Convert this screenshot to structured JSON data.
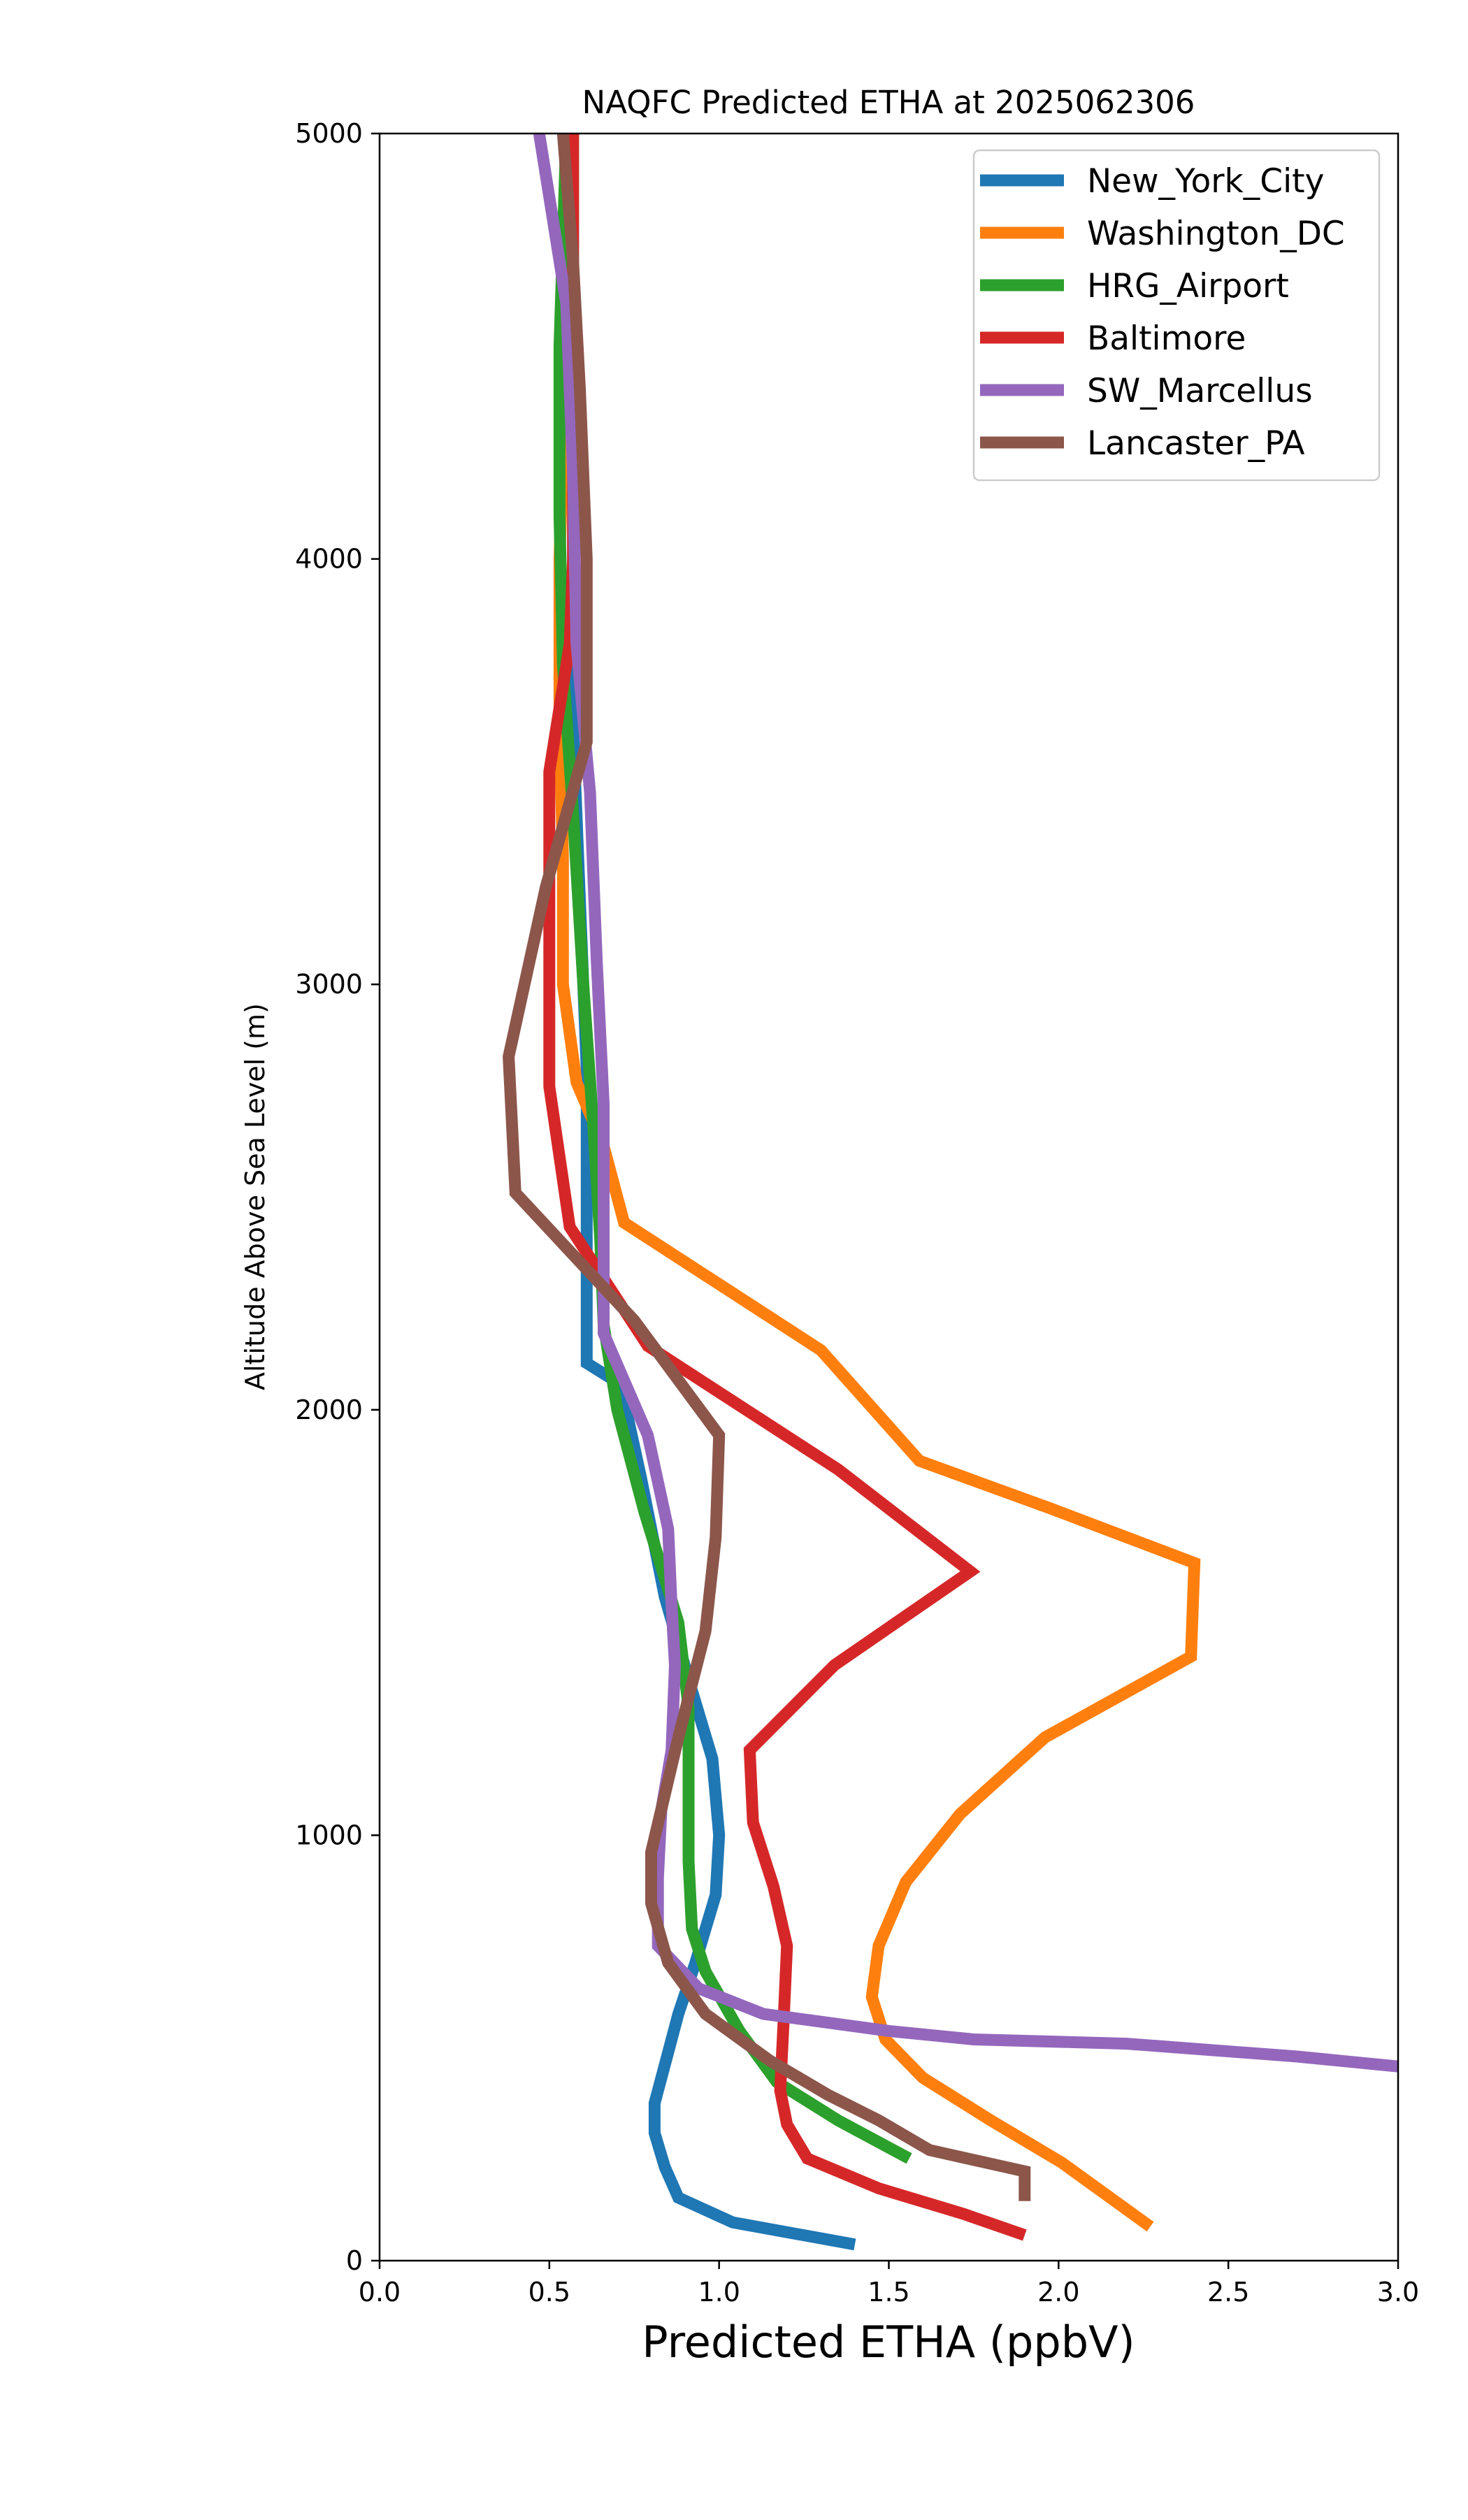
{
  "chart_data": {
    "type": "line",
    "title": "NAQFC Predicted ETHA at 2025062306",
    "xlabel": "Predicted ETHA (ppbV)",
    "ylabel": "Altitude Above Sea Level (m)",
    "xlim": [
      0.0,
      3.0
    ],
    "ylim": [
      0,
      5000
    ],
    "xticks": [
      0.0,
      0.5,
      1.0,
      1.5,
      2.0,
      2.5,
      3.0
    ],
    "xtick_labels": [
      "0.0",
      "0.5",
      "1.0",
      "1.5",
      "2.0",
      "2.5",
      "3.0"
    ],
    "yticks": [
      0,
      1000,
      2000,
      3000,
      4000,
      5000
    ],
    "ytick_labels": [
      "0",
      "1000",
      "2000",
      "3000",
      "4000",
      "5000"
    ],
    "grid": false,
    "legend_position": "top-right",
    "series": [
      {
        "name": "New_York_City",
        "color": "#1f77b4",
        "points": [
          [
            1.4,
            38
          ],
          [
            1.04,
            90
          ],
          [
            0.88,
            148
          ],
          [
            0.84,
            220
          ],
          [
            0.81,
            300
          ],
          [
            0.81,
            370
          ],
          [
            0.84,
            460
          ],
          [
            0.88,
            580
          ],
          [
            0.93,
            700
          ],
          [
            0.99,
            860
          ],
          [
            1.0,
            1000
          ],
          [
            0.98,
            1180
          ],
          [
            0.92,
            1340
          ],
          [
            0.84,
            1560
          ],
          [
            0.77,
            1840
          ],
          [
            0.71,
            2060
          ],
          [
            0.61,
            2110
          ],
          [
            0.61,
            2440
          ],
          [
            0.61,
            2800
          ],
          [
            0.59,
            3200
          ],
          [
            0.57,
            3600
          ],
          [
            0.57,
            4000
          ],
          [
            0.57,
            4500
          ],
          [
            0.57,
            5000
          ]
        ]
      },
      {
        "name": "Washington_DC",
        "color": "#ff7f0e",
        "points": [
          [
            2.27,
            80
          ],
          [
            2.01,
            230
          ],
          [
            1.8,
            330
          ],
          [
            1.6,
            430
          ],
          [
            1.49,
            520
          ],
          [
            1.45,
            620
          ],
          [
            1.47,
            740
          ],
          [
            1.55,
            890
          ],
          [
            1.71,
            1050
          ],
          [
            1.96,
            1230
          ],
          [
            2.39,
            1420
          ],
          [
            2.4,
            1640
          ],
          [
            1.97,
            1770
          ],
          [
            1.59,
            1880
          ],
          [
            1.3,
            2140
          ],
          [
            0.72,
            2440
          ],
          [
            0.66,
            2620
          ],
          [
            0.58,
            2770
          ],
          [
            0.54,
            3000
          ],
          [
            0.54,
            3300
          ],
          [
            0.53,
            3600
          ],
          [
            0.53,
            4000
          ],
          [
            0.55,
            4500
          ],
          [
            0.57,
            5000
          ]
        ]
      },
      {
        "name": "HRG_Airport",
        "color": "#2ca02c",
        "points": [
          [
            1.56,
            240
          ],
          [
            1.35,
            330
          ],
          [
            1.17,
            420
          ],
          [
            1.06,
            540
          ],
          [
            0.96,
            680
          ],
          [
            0.92,
            780
          ],
          [
            0.91,
            940
          ],
          [
            0.91,
            1100
          ],
          [
            0.91,
            1300
          ],
          [
            0.88,
            1500
          ],
          [
            0.78,
            1760
          ],
          [
            0.7,
            2000
          ],
          [
            0.66,
            2200
          ],
          [
            0.65,
            2400
          ],
          [
            0.63,
            2660
          ],
          [
            0.6,
            3000
          ],
          [
            0.57,
            3400
          ],
          [
            0.54,
            3750
          ],
          [
            0.53,
            4100
          ],
          [
            0.53,
            4500
          ],
          [
            0.55,
            5000
          ]
        ]
      },
      {
        "name": "Baltimore",
        "color": "#d62728",
        "points": [
          [
            1.9,
            60
          ],
          [
            1.72,
            110
          ],
          [
            1.47,
            170
          ],
          [
            1.26,
            240
          ],
          [
            1.2,
            320
          ],
          [
            1.18,
            400
          ],
          [
            1.19,
            560
          ],
          [
            1.2,
            740
          ],
          [
            1.16,
            880
          ],
          [
            1.1,
            1030
          ],
          [
            1.09,
            1200
          ],
          [
            1.34,
            1400
          ],
          [
            1.74,
            1620
          ],
          [
            1.35,
            1860
          ],
          [
            0.79,
            2150
          ],
          [
            0.56,
            2430
          ],
          [
            0.5,
            2760
          ],
          [
            0.5,
            3100
          ],
          [
            0.5,
            3500
          ],
          [
            0.56,
            3800
          ],
          [
            0.57,
            4000
          ],
          [
            0.57,
            4400
          ],
          [
            0.57,
            5000
          ]
        ]
      },
      {
        "name": "SW_Marcellus",
        "color": "#9467bd",
        "points": [
          [
            3.02,
            455
          ],
          [
            2.7,
            480
          ],
          [
            2.2,
            510
          ],
          [
            1.75,
            520
          ],
          [
            1.5,
            540
          ],
          [
            1.13,
            580
          ],
          [
            0.94,
            640
          ],
          [
            0.82,
            740
          ],
          [
            0.82,
            900
          ],
          [
            0.83,
            1060
          ],
          [
            0.86,
            1200
          ],
          [
            0.87,
            1400
          ],
          [
            0.86,
            1540
          ],
          [
            0.85,
            1720
          ],
          [
            0.79,
            1940
          ],
          [
            0.66,
            2180
          ],
          [
            0.66,
            2500
          ],
          [
            0.66,
            2720
          ],
          [
            0.64,
            3050
          ],
          [
            0.62,
            3450
          ],
          [
            0.58,
            3800
          ],
          [
            0.57,
            4200
          ],
          [
            0.55,
            4600
          ],
          [
            0.47,
            5000
          ]
        ]
      },
      {
        "name": "Lancaster_PA",
        "color": "#8c564b",
        "points": [
          [
            1.9,
            140
          ],
          [
            1.9,
            210
          ],
          [
            1.62,
            260
          ],
          [
            1.47,
            330
          ],
          [
            1.32,
            390
          ],
          [
            1.15,
            470
          ],
          [
            0.96,
            580
          ],
          [
            0.85,
            700
          ],
          [
            0.8,
            840
          ],
          [
            0.8,
            960
          ],
          [
            0.88,
            1230
          ],
          [
            0.96,
            1480
          ],
          [
            0.99,
            1700
          ],
          [
            1.0,
            1940
          ],
          [
            0.75,
            2210
          ],
          [
            0.4,
            2510
          ],
          [
            0.38,
            2830
          ],
          [
            0.49,
            3230
          ],
          [
            0.61,
            3570
          ],
          [
            0.61,
            4000
          ],
          [
            0.59,
            4400
          ],
          [
            0.57,
            4700
          ],
          [
            0.54,
            5000
          ]
        ]
      }
    ]
  }
}
